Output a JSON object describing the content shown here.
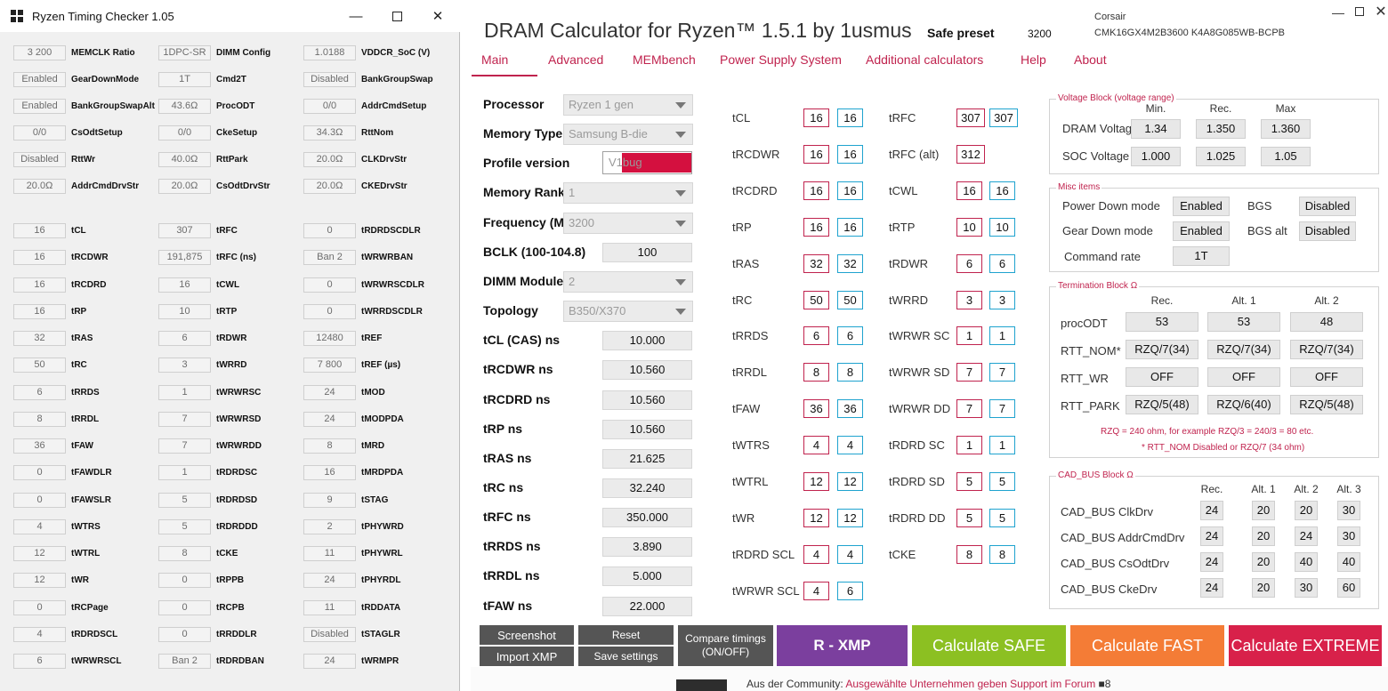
{
  "rtc": {
    "title": "Ryzen Timing Checker 1.05",
    "rows": [
      [
        {
          "v": "3 200",
          "l": "MEMCLK Ratio"
        },
        {
          "v": "1DPC-SR",
          "l": "DIMM Config"
        },
        {
          "v": "1.0188",
          "l": "VDDCR_SoC (V)"
        }
      ],
      [
        {
          "v": "Enabled",
          "l": "GearDownMode"
        },
        {
          "v": "1T",
          "l": "Cmd2T"
        },
        {
          "v": "Disabled",
          "l": "BankGroupSwap"
        }
      ],
      [
        {
          "v": "Enabled",
          "l": "BankGroupSwapAlt"
        },
        {
          "v": "43.6Ω",
          "l": "ProcODT"
        },
        {
          "v": "0/0",
          "l": "AddrCmdSetup"
        }
      ],
      [
        {
          "v": "0/0",
          "l": "CsOdtSetup"
        },
        {
          "v": "0/0",
          "l": "CkeSetup"
        },
        {
          "v": "34.3Ω",
          "l": "RttNom"
        }
      ],
      [
        {
          "v": "Disabled",
          "l": "RttWr"
        },
        {
          "v": "40.0Ω",
          "l": "RttPark"
        },
        {
          "v": "20.0Ω",
          "l": "CLKDrvStr"
        }
      ],
      [
        {
          "v": "20.0Ω",
          "l": "AddrCmdDrvStr"
        },
        {
          "v": "20.0Ω",
          "l": "CsOdtDrvStr"
        },
        {
          "v": "20.0Ω",
          "l": "CKEDrvStr"
        }
      ],
      [
        {
          "v": "16",
          "l": "tCL"
        },
        {
          "v": "307",
          "l": "tRFC"
        },
        {
          "v": "0",
          "l": "tRDRDSCDLR"
        }
      ],
      [
        {
          "v": "16",
          "l": "tRCDWR"
        },
        {
          "v": "191,875",
          "l": "tRFC (ns)"
        },
        {
          "v": "Ban 2",
          "l": "tWRWRBAN"
        }
      ],
      [
        {
          "v": "16",
          "l": "tRCDRD"
        },
        {
          "v": "16",
          "l": "tCWL"
        },
        {
          "v": "0",
          "l": "tWRWRSCDLR"
        }
      ],
      [
        {
          "v": "16",
          "l": "tRP"
        },
        {
          "v": "10",
          "l": "tRTP"
        },
        {
          "v": "0",
          "l": "tWRRDSCDLR"
        }
      ],
      [
        {
          "v": "32",
          "l": "tRAS"
        },
        {
          "v": "6",
          "l": "tRDWR"
        },
        {
          "v": "12480",
          "l": "tREF"
        }
      ],
      [
        {
          "v": "50",
          "l": "tRC"
        },
        {
          "v": "3",
          "l": "tWRRD"
        },
        {
          "v": "7 800",
          "l": "tREF (µs)"
        }
      ],
      [
        {
          "v": "6",
          "l": "tRRDS"
        },
        {
          "v": "1",
          "l": "tWRWRSC"
        },
        {
          "v": "24",
          "l": "tMOD"
        }
      ],
      [
        {
          "v": "8",
          "l": "tRRDL"
        },
        {
          "v": "7",
          "l": "tWRWRSD"
        },
        {
          "v": "24",
          "l": "tMODPDA"
        }
      ],
      [
        {
          "v": "36",
          "l": "tFAW"
        },
        {
          "v": "7",
          "l": "tWRWRDD"
        },
        {
          "v": "8",
          "l": "tMRD"
        }
      ],
      [
        {
          "v": "0",
          "l": "tFAWDLR"
        },
        {
          "v": "1",
          "l": "tRDRDSC"
        },
        {
          "v": "16",
          "l": "tMRDPDA"
        }
      ],
      [
        {
          "v": "0",
          "l": "tFAWSLR"
        },
        {
          "v": "5",
          "l": "tRDRDSD"
        },
        {
          "v": "9",
          "l": "tSTAG"
        }
      ],
      [
        {
          "v": "4",
          "l": "tWTRS"
        },
        {
          "v": "5",
          "l": "tRDRDDD"
        },
        {
          "v": "2",
          "l": "tPHYWRD"
        }
      ],
      [
        {
          "v": "12",
          "l": "tWTRL"
        },
        {
          "v": "8",
          "l": "tCKE"
        },
        {
          "v": "11",
          "l": "tPHYWRL"
        }
      ],
      [
        {
          "v": "12",
          "l": "tWR"
        },
        {
          "v": "0",
          "l": "tRPPB"
        },
        {
          "v": "24",
          "l": "tPHYRDL"
        }
      ],
      [
        {
          "v": "0",
          "l": "tRCPage"
        },
        {
          "v": "0",
          "l": "tRCPB"
        },
        {
          "v": "11",
          "l": "tRDDATA"
        }
      ],
      [
        {
          "v": "4",
          "l": "tRDRDSCL"
        },
        {
          "v": "0",
          "l": "tRRDDLR"
        },
        {
          "v": "Disabled",
          "l": "tSTAGLR"
        }
      ],
      [
        {
          "v": "6",
          "l": "tWRWRSCL"
        },
        {
          "v": "Ban 2",
          "l": "tRDRDBAN"
        },
        {
          "v": "24",
          "l": "tWRMPR"
        }
      ]
    ]
  },
  "dram": {
    "title": "DRAM Calculator for Ryzen™ 1.5.1 by 1usmus",
    "preset_label": "Safe preset",
    "preset_value": "3200",
    "mem_vendor": "Corsair",
    "mem_part": "CMK16GX4M2B3600 K4A8G085WB-BCPB",
    "tabs": [
      "Main",
      "Advanced",
      "MEMbench",
      "Power Supply System",
      "Additional calculators",
      "Help",
      "About"
    ],
    "fields": [
      {
        "l": "Processor",
        "v": "Ryzen 1 gen",
        "type": "combo"
      },
      {
        "l": "Memory Type",
        "v": "Samsung B-die",
        "type": "combo"
      },
      {
        "l": "Profile version",
        "v": "V1bug",
        "type": "input"
      },
      {
        "l": "Memory Rank",
        "v": "1",
        "type": "combo"
      },
      {
        "l": "Frequency (MT/s)",
        "v": "3200",
        "type": "combo"
      },
      {
        "l": "BCLK (100-104.8)",
        "v": "100",
        "type": "box"
      },
      {
        "l": "DIMM Modules",
        "v": "2",
        "type": "combo"
      },
      {
        "l": "Topology",
        "v": "B350/X370",
        "type": "combo"
      },
      {
        "l": "tCL (CAS) ns",
        "v": "10.000",
        "type": "box"
      },
      {
        "l": "tRCDWR ns",
        "v": "10.560",
        "type": "box"
      },
      {
        "l": "tRCDRD ns",
        "v": "10.560",
        "type": "box"
      },
      {
        "l": "tRP ns",
        "v": "10.560",
        "type": "box"
      },
      {
        "l": "tRAS ns",
        "v": "21.625",
        "type": "box"
      },
      {
        "l": "tRC ns",
        "v": "32.240",
        "type": "box"
      },
      {
        "l": "tRFC ns",
        "v": "350.000",
        "type": "box"
      },
      {
        "l": "tRRDS ns",
        "v": "3.890",
        "type": "box"
      },
      {
        "l": "tRRDL ns",
        "v": "5.000",
        "type": "box"
      },
      {
        "l": "tFAW ns",
        "v": "22.000",
        "type": "box"
      }
    ],
    "timings_left": [
      {
        "l": "tCL",
        "a": "16",
        "b": "16"
      },
      {
        "l": "tRCDWR",
        "a": "16",
        "b": "16"
      },
      {
        "l": "tRCDRD",
        "a": "16",
        "b": "16"
      },
      {
        "l": "tRP",
        "a": "16",
        "b": "16"
      },
      {
        "l": "tRAS",
        "a": "32",
        "b": "32"
      },
      {
        "l": "tRC",
        "a": "50",
        "b": "50"
      },
      {
        "l": "tRRDS",
        "a": "6",
        "b": "6"
      },
      {
        "l": "tRRDL",
        "a": "8",
        "b": "8"
      },
      {
        "l": "tFAW",
        "a": "36",
        "b": "36"
      },
      {
        "l": "tWTRS",
        "a": "4",
        "b": "4"
      },
      {
        "l": "tWTRL",
        "a": "12",
        "b": "12"
      },
      {
        "l": "tWR",
        "a": "12",
        "b": "12"
      },
      {
        "l": "tRDRD SCL",
        "a": "4",
        "b": "4"
      },
      {
        "l": "tWRWR SCL",
        "a": "4",
        "b": "6"
      }
    ],
    "timings_right": [
      {
        "l": "tRFC",
        "a": "307",
        "b": "307"
      },
      {
        "l": "tRFC (alt)",
        "a": "312",
        "b": null
      },
      {
        "l": "tCWL",
        "a": "16",
        "b": "16"
      },
      {
        "l": "tRTP",
        "a": "10",
        "b": "10"
      },
      {
        "l": "tRDWR",
        "a": "6",
        "b": "6"
      },
      {
        "l": "tWRRD",
        "a": "3",
        "b": "3"
      },
      {
        "l": "tWRWR SC",
        "a": "1",
        "b": "1"
      },
      {
        "l": "tWRWR SD",
        "a": "7",
        "b": "7"
      },
      {
        "l": "tWRWR DD",
        "a": "7",
        "b": "7"
      },
      {
        "l": "tRDRD SC",
        "a": "1",
        "b": "1"
      },
      {
        "l": "tRDRD SD",
        "a": "5",
        "b": "5"
      },
      {
        "l": "tRDRD DD",
        "a": "5",
        "b": "5"
      },
      {
        "l": "tCKE",
        "a": "8",
        "b": "8"
      }
    ],
    "voltage": {
      "title": "Voltage Block (voltage range)",
      "headers": [
        "Min.",
        "Rec.",
        "Max"
      ],
      "rows": [
        {
          "l": "DRAM Voltage",
          "v": [
            "1.34",
            "1.350",
            "1.360"
          ]
        },
        {
          "l": "SOC Voltage",
          "v": [
            "1.000",
            "1.025",
            "1.05"
          ]
        }
      ]
    },
    "misc": {
      "title": "Misc items",
      "power_down_label": "Power Down mode",
      "power_down_value": "Enabled",
      "bgs_label": "BGS",
      "bgs_value": "Disabled",
      "gear_down_label": "Gear Down mode",
      "gear_down_value": "Enabled",
      "bgs_alt_label": "BGS alt",
      "bgs_alt_value": "Disabled",
      "command_rate_label": "Command rate",
      "command_rate_value": "1T"
    },
    "termination": {
      "title": "Termination Block Ω",
      "headers": [
        "Rec.",
        "Alt. 1",
        "Alt. 2"
      ],
      "rows": [
        {
          "l": "procODT",
          "v": [
            "53",
            "53",
            "48"
          ]
        },
        {
          "l": "RTT_NOM*",
          "v": [
            "RZQ/7(34)",
            "RZQ/7(34)",
            "RZQ/7(34)"
          ]
        },
        {
          "l": "RTT_WR",
          "v": [
            "OFF",
            "OFF",
            "OFF"
          ]
        },
        {
          "l": "RTT_PARK",
          "v": [
            "RZQ/5(48)",
            "RZQ/6(40)",
            "RZQ/5(48)"
          ]
        }
      ],
      "note1": "RZQ = 240 ohm, for example RZQ/3 = 240/3 = 80 etc.",
      "note2": "* RTT_NOM Disabled or RZQ/7 (34 ohm)"
    },
    "cad": {
      "title": "CAD_BUS Block Ω",
      "headers": [
        "Rec.",
        "Alt. 1",
        "Alt. 2",
        "Alt. 3"
      ],
      "rows": [
        {
          "l": "CAD_BUS ClkDrv",
          "v": [
            "24",
            "20",
            "20",
            "30"
          ]
        },
        {
          "l": "CAD_BUS AddrCmdDrv",
          "v": [
            "24",
            "20",
            "24",
            "30"
          ]
        },
        {
          "l": "CAD_BUS CsOdtDrv",
          "v": [
            "24",
            "20",
            "40",
            "40"
          ]
        },
        {
          "l": "CAD_BUS CkeDrv",
          "v": [
            "24",
            "20",
            "30",
            "60"
          ]
        }
      ]
    },
    "buttons": {
      "screenshot": "Screenshot",
      "import_xmp": "Import XMP",
      "reset": "Reset",
      "save_settings": "Save settings",
      "compare_line1": "Compare timings",
      "compare_line2": "(ON/OFF)",
      "r_xmp": "R - XMP",
      "calc_safe": "Calculate SAFE",
      "calc_fast": "Calculate FAST",
      "calc_extreme": "Calculate EXTREME"
    },
    "colors": {
      "accent": "#c0234e",
      "blue": "#1fa3cf",
      "purple": "#7b3f9e",
      "green": "#8cc022",
      "orange": "#f47c36",
      "red": "#d8214a",
      "dark_btn": "#555555"
    }
  },
  "footer": {
    "text": "Aus der Community:",
    "link": "Ausgewählte Unternehmen geben Support im Forum",
    "count": "8"
  }
}
